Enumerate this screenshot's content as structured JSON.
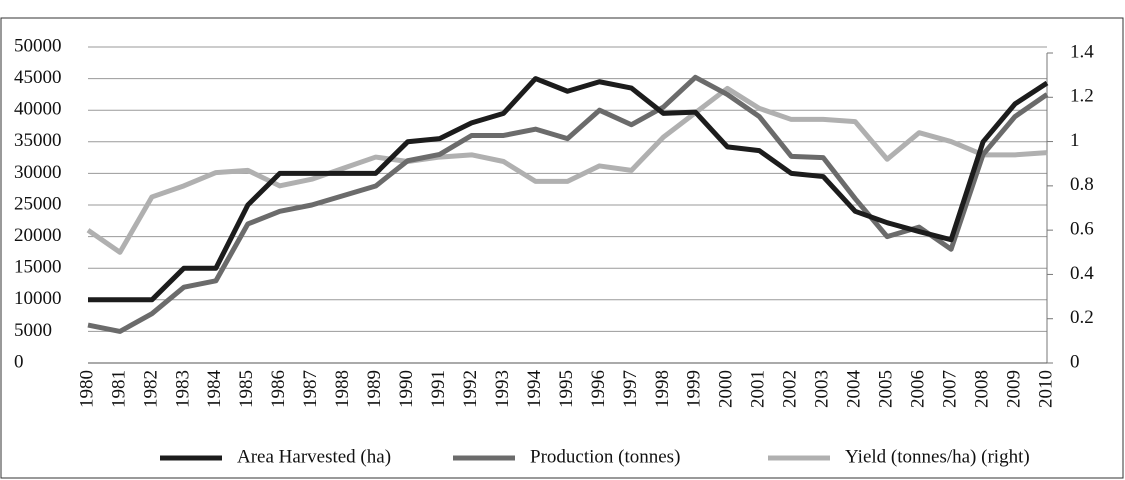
{
  "chart_data": {
    "type": "line",
    "categories": [
      "1980",
      "1981",
      "1982",
      "1983",
      "1984",
      "1985",
      "1986",
      "1987",
      "1988",
      "1989",
      "1990",
      "1991",
      "1992",
      "1993",
      "1994",
      "1995",
      "1996",
      "1997",
      "1998",
      "1999",
      "2000",
      "2001",
      "2002",
      "2003",
      "2004",
      "2005",
      "2006",
      "2007",
      "2008",
      "2009",
      "2010"
    ],
    "series": [
      {
        "name": "Area Harvested (ha)",
        "color": "#1c1c1c",
        "values": [
          10000,
          10000,
          10000,
          15000,
          15000,
          25000,
          30000,
          30000,
          30000,
          30000,
          35000,
          35500,
          38000,
          39500,
          45000,
          43000,
          44500,
          43500,
          39500,
          39700,
          34200,
          33600,
          30000,
          29500,
          24000,
          22200,
          20800,
          19500,
          35000,
          41000,
          44300
        ]
      },
      {
        "name": "Production (tonnes)",
        "color": "#6b6b6b",
        "values": [
          6000,
          5000,
          7800,
          12000,
          13000,
          22000,
          24000,
          25000,
          26500,
          28000,
          32000,
          33000,
          36000,
          36000,
          37000,
          35500,
          40000,
          37700,
          40500,
          45200,
          42500,
          39000,
          32700,
          32500,
          26000,
          20000,
          21500,
          18000,
          33000,
          39000,
          42500
        ]
      },
      {
        "name": "Yield (tonnes/ha) (right)",
        "color": "#b0b0b0",
        "axis": "y2",
        "values": [
          0.6,
          0.5,
          0.75,
          0.8,
          0.86,
          0.87,
          0.8,
          0.83,
          0.88,
          0.93,
          0.91,
          0.93,
          0.94,
          0.91,
          0.82,
          0.82,
          0.89,
          0.87,
          1.02,
          1.13,
          1.24,
          1.15,
          1.1,
          1.1,
          1.09,
          0.92,
          1.04,
          1.0,
          0.94,
          0.94,
          0.95
        ]
      }
    ],
    "ylim": [
      0,
      50000
    ],
    "yticks": [
      0,
      5000,
      10000,
      15000,
      20000,
      25000,
      30000,
      35000,
      40000,
      45000,
      50000
    ],
    "y2lim": [
      0,
      1.4
    ],
    "y2ticks": [
      0,
      0.2,
      0.4,
      0.6,
      0.8,
      1,
      1.2,
      1.4
    ],
    "grid": true
  }
}
